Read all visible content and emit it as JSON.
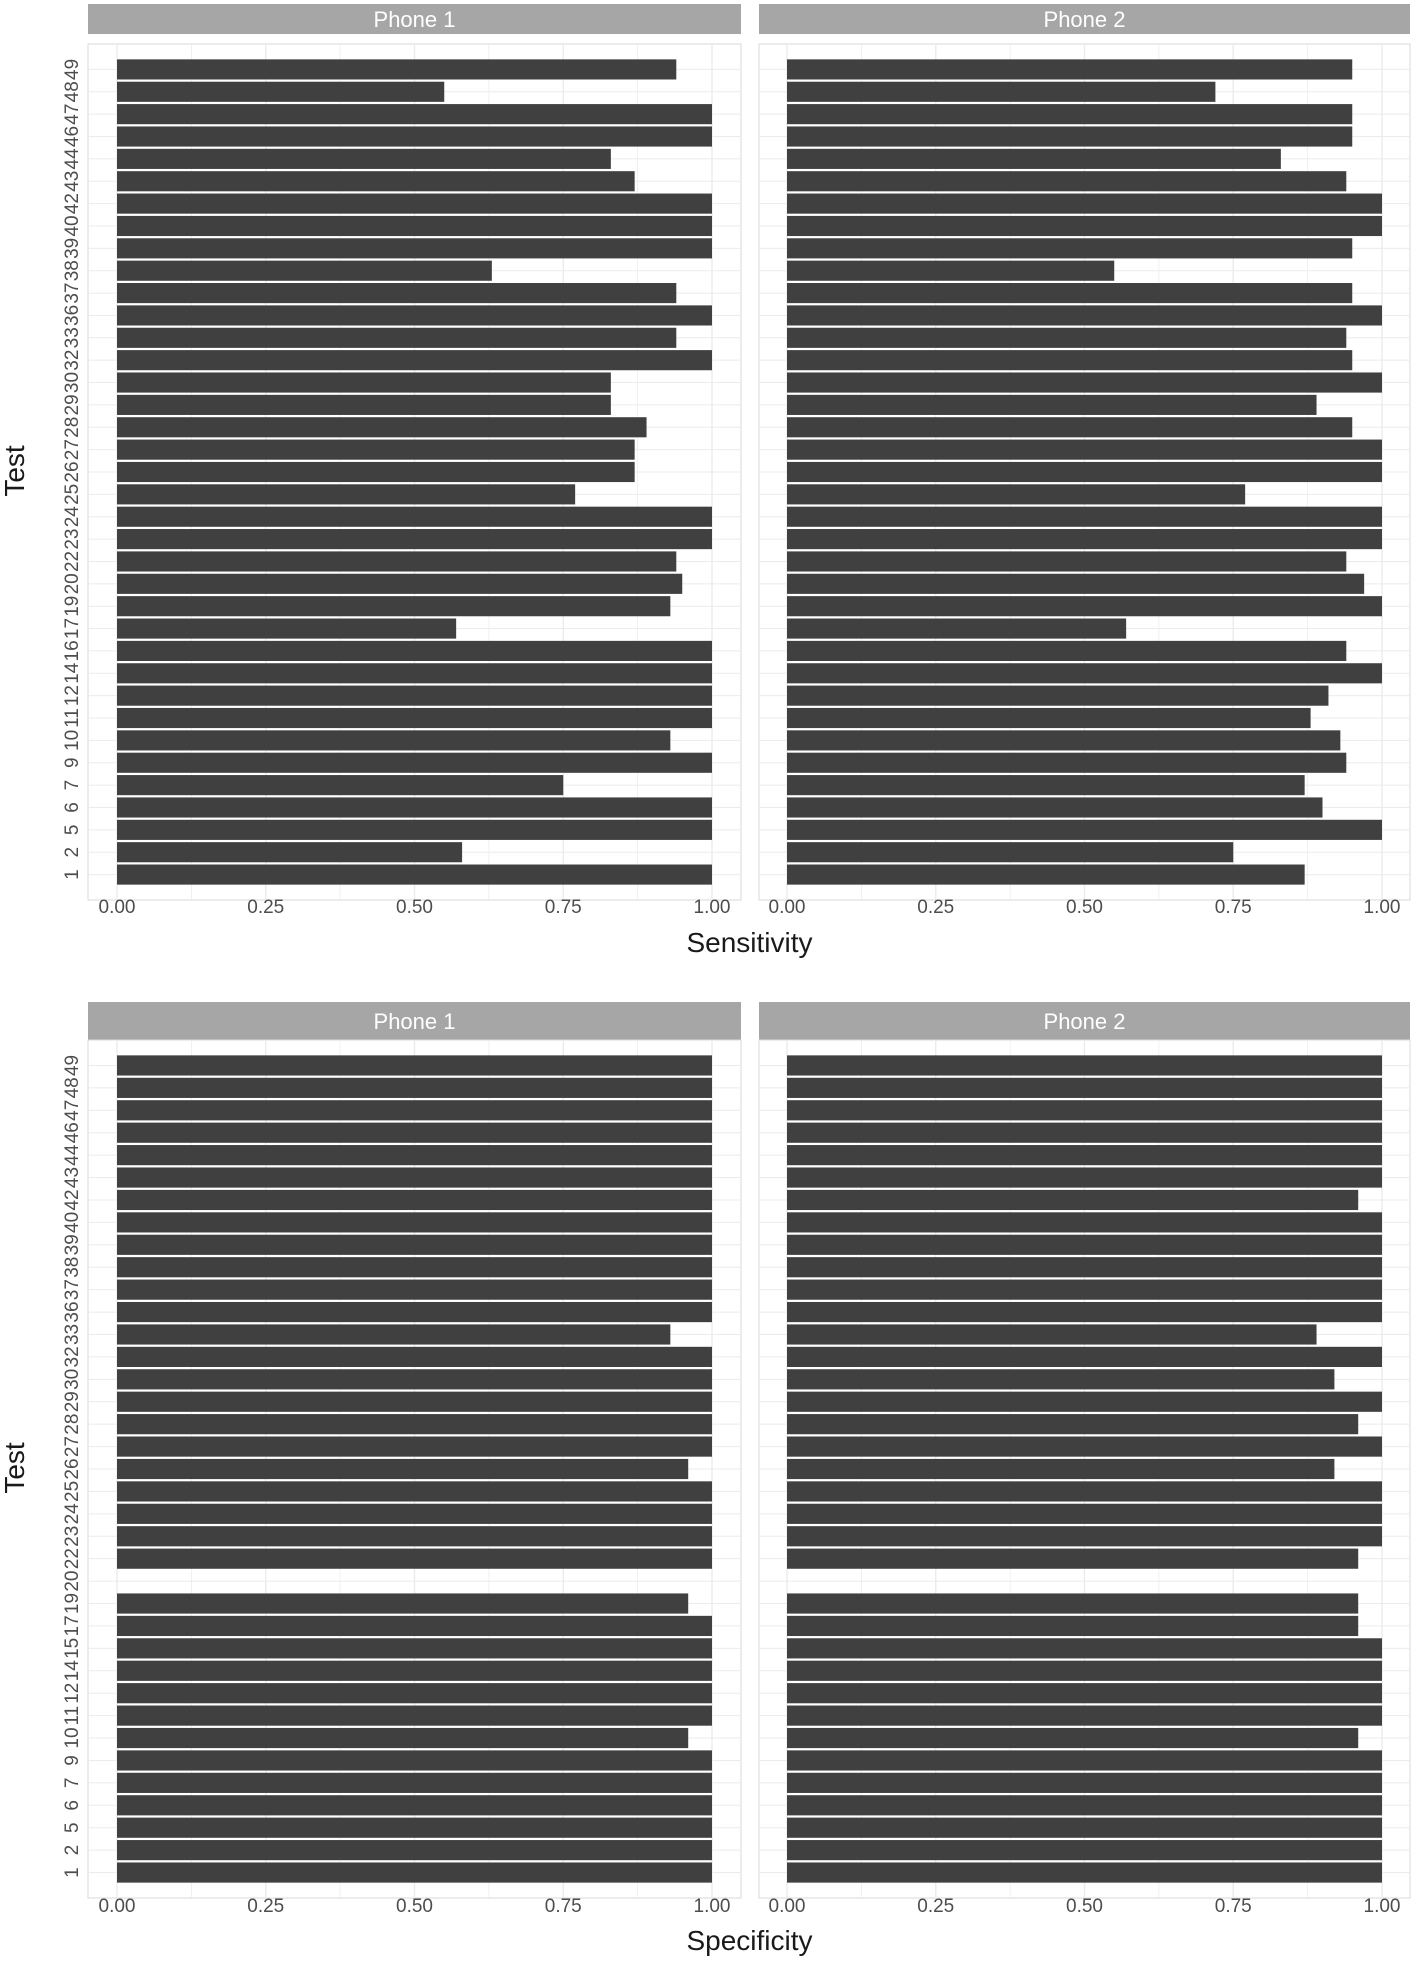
{
  "chart_data": [
    {
      "type": "bar",
      "orientation": "horizontal",
      "xlabel": "Sensitivity",
      "ylabel": "Test",
      "xlim": [
        0,
        1
      ],
      "x_ticks": [
        "0.00",
        "0.25",
        "0.50",
        "0.75",
        "1.00"
      ],
      "grid": true,
      "colors": {
        "bar": "#404040",
        "strip": "#a6a6a6",
        "grid": "#ebebeb",
        "panel_border": "#d9d9d9"
      },
      "categories": [
        "1",
        "2",
        "5",
        "6",
        "7",
        "9",
        "10",
        "11",
        "12",
        "14",
        "16",
        "17",
        "19",
        "20",
        "22",
        "23",
        "24",
        "25",
        "26",
        "27",
        "28",
        "29",
        "30",
        "32",
        "33",
        "36",
        "37",
        "38",
        "39",
        "40",
        "42",
        "43",
        "44",
        "46",
        "47",
        "48",
        "49"
      ],
      "panels": [
        {
          "name": "Phone 1",
          "values": [
            1.0,
            0.58,
            1.0,
            1.0,
            0.75,
            1.0,
            0.93,
            1.0,
            1.0,
            1.0,
            1.0,
            0.57,
            0.93,
            0.95,
            0.94,
            1.0,
            1.0,
            0.77,
            0.87,
            0.87,
            0.89,
            0.83,
            0.83,
            1.0,
            0.94,
            1.0,
            0.94,
            0.63,
            1.0,
            1.0,
            1.0,
            0.87,
            0.83,
            1.0,
            1.0,
            0.55,
            0.94
          ]
        },
        {
          "name": "Phone 2",
          "values": [
            0.87,
            0.75,
            1.0,
            0.9,
            0.87,
            0.94,
            0.93,
            0.88,
            0.91,
            1.0,
            0.94,
            0.57,
            1.0,
            0.97,
            0.94,
            1.0,
            1.0,
            0.77,
            1.0,
            1.0,
            0.95,
            0.89,
            1.0,
            0.95,
            0.94,
            1.0,
            0.95,
            0.55,
            0.95,
            1.0,
            1.0,
            0.94,
            0.83,
            0.95,
            0.95,
            0.72,
            0.95
          ]
        }
      ]
    },
    {
      "type": "bar",
      "orientation": "horizontal",
      "xlabel": "Specificity",
      "ylabel": "Test",
      "xlim": [
        0,
        1
      ],
      "x_ticks": [
        "0.00",
        "0.25",
        "0.50",
        "0.75",
        "1.00"
      ],
      "grid": true,
      "colors": {
        "bar": "#404040",
        "strip": "#a6a6a6",
        "grid": "#ebebeb",
        "panel_border": "#d9d9d9"
      },
      "categories": [
        "1",
        "2",
        "5",
        "6",
        "7",
        "9",
        "10",
        "11",
        "12",
        "14",
        "15",
        "17",
        "19",
        "20",
        "22",
        "23",
        "24",
        "25",
        "26",
        "27",
        "28",
        "29",
        "30",
        "32",
        "33",
        "36",
        "37",
        "38",
        "39",
        "40",
        "42",
        "43",
        "44",
        "46",
        "47",
        "48",
        "49"
      ],
      "panels": [
        {
          "name": "Phone 1",
          "values": [
            1.0,
            1.0,
            1.0,
            1.0,
            1.0,
            1.0,
            0.96,
            1.0,
            1.0,
            1.0,
            1.0,
            1.0,
            0.96,
            null,
            1.0,
            1.0,
            1.0,
            1.0,
            0.96,
            1.0,
            1.0,
            1.0,
            1.0,
            1.0,
            0.93,
            1.0,
            1.0,
            1.0,
            1.0,
            1.0,
            1.0,
            1.0,
            1.0,
            1.0,
            1.0,
            1.0,
            1.0
          ]
        },
        {
          "name": "Phone 2",
          "values": [
            1.0,
            1.0,
            1.0,
            1.0,
            1.0,
            1.0,
            0.96,
            1.0,
            1.0,
            1.0,
            1.0,
            0.96,
            0.96,
            null,
            0.96,
            1.0,
            1.0,
            1.0,
            0.92,
            1.0,
            0.96,
            1.0,
            0.92,
            1.0,
            0.89,
            1.0,
            1.0,
            1.0,
            1.0,
            1.0,
            0.96,
            1.0,
            1.0,
            1.0,
            1.0,
            1.0,
            1.0
          ]
        }
      ]
    }
  ]
}
